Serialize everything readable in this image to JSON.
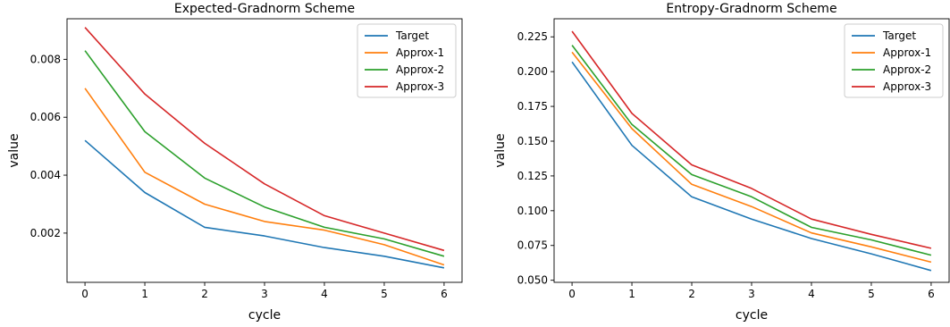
{
  "chart_data": [
    {
      "type": "line",
      "title": "Expected-Gradnorm Scheme",
      "xlabel": "cycle",
      "ylabel": "value",
      "x": [
        0,
        1,
        2,
        3,
        4,
        5,
        6
      ],
      "xlim": [
        -0.3,
        6.3
      ],
      "ylim": [
        0.0003,
        0.0094
      ],
      "xticks": [
        "0",
        "1",
        "2",
        "3",
        "4",
        "5",
        "6"
      ],
      "yticks": [
        "0.002",
        "0.004",
        "0.006",
        "0.008"
      ],
      "grid": false,
      "legend_position": "top-right",
      "series": [
        {
          "name": "Target",
          "color": "#1f77b4",
          "values": [
            0.0052,
            0.0034,
            0.0022,
            0.0019,
            0.0015,
            0.0012,
            0.0008
          ]
        },
        {
          "name": "Approx-1",
          "color": "#ff7f0e",
          "values": [
            0.007,
            0.0041,
            0.003,
            0.0024,
            0.0021,
            0.0016,
            0.0009
          ]
        },
        {
          "name": "Approx-2",
          "color": "#2ca02c",
          "values": [
            0.0083,
            0.0055,
            0.0039,
            0.0029,
            0.0022,
            0.0018,
            0.0012
          ]
        },
        {
          "name": "Approx-3",
          "color": "#d62728",
          "values": [
            0.0091,
            0.0068,
            0.0051,
            0.0037,
            0.0026,
            0.002,
            0.0014
          ]
        }
      ]
    },
    {
      "type": "line",
      "title": "Entropy-Gradnorm Scheme",
      "xlabel": "cycle",
      "ylabel": "value",
      "x": [
        0,
        1,
        2,
        3,
        4,
        5,
        6
      ],
      "xlim": [
        -0.3,
        6.3
      ],
      "ylim": [
        0.0485,
        0.238
      ],
      "xticks": [
        "0",
        "1",
        "2",
        "3",
        "4",
        "5",
        "6"
      ],
      "yticks": [
        "0.050",
        "0.075",
        "0.100",
        "0.125",
        "0.150",
        "0.175",
        "0.200",
        "0.225"
      ],
      "grid": false,
      "legend_position": "top-right",
      "series": [
        {
          "name": "Target",
          "color": "#1f77b4",
          "values": [
            0.207,
            0.147,
            0.11,
            0.094,
            0.08,
            0.069,
            0.057
          ]
        },
        {
          "name": "Approx-1",
          "color": "#ff7f0e",
          "values": [
            0.214,
            0.159,
            0.119,
            0.103,
            0.084,
            0.074,
            0.063
          ]
        },
        {
          "name": "Approx-2",
          "color": "#2ca02c",
          "values": [
            0.219,
            0.162,
            0.126,
            0.11,
            0.088,
            0.079,
            0.068
          ]
        },
        {
          "name": "Approx-3",
          "color": "#d62728",
          "values": [
            0.229,
            0.17,
            0.133,
            0.116,
            0.094,
            0.083,
            0.073
          ]
        }
      ]
    }
  ]
}
